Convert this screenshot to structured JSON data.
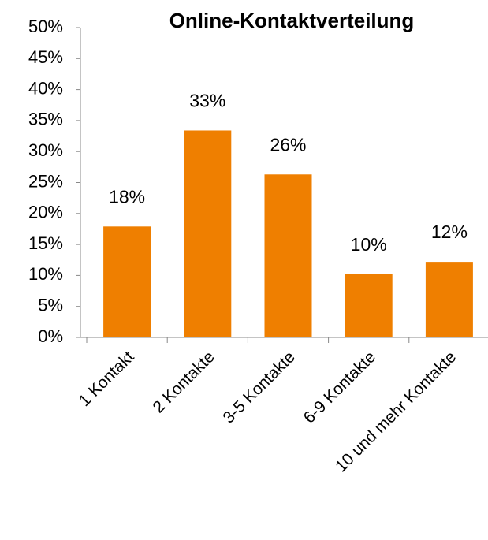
{
  "chart_data": {
    "type": "bar",
    "title": "Online-Kontaktverteilung",
    "categories": [
      "1 Kontakt",
      "2 Kontakte",
      "3-5 Kontakte",
      "6-9 Kontakte",
      "10 und mehr Kontakte"
    ],
    "values": [
      17.9,
      33.4,
      26.3,
      10.2,
      12.2
    ],
    "value_labels": [
      "18%",
      "33%",
      "26%",
      "10%",
      "12%"
    ],
    "color": "#ef7f00",
    "ylim": [
      0,
      50
    ],
    "yticks": [
      {
        "value": 0,
        "label": "0%"
      },
      {
        "value": 5,
        "label": "5%"
      },
      {
        "value": 10,
        "label": "10%"
      },
      {
        "value": 15,
        "label": "15%"
      },
      {
        "value": 20,
        "label": "20%"
      },
      {
        "value": 25,
        "label": "25%"
      },
      {
        "value": 30,
        "label": "30%"
      },
      {
        "value": 35,
        "label": "35%"
      },
      {
        "value": 40,
        "label": "40%"
      },
      {
        "value": 45,
        "label": "45%"
      },
      {
        "value": 50,
        "label": "50%"
      }
    ],
    "grid": false
  }
}
